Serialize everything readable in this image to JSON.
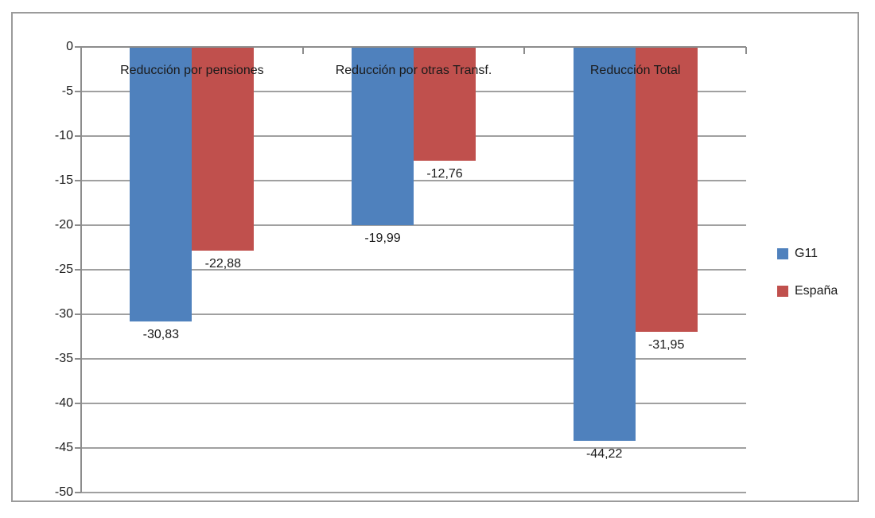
{
  "chart_data": {
    "type": "bar",
    "orientation": "vertical",
    "categories": [
      "Reducción por pensiones",
      "Reducción por otras Transf.",
      "Reducción Total"
    ],
    "series": [
      {
        "name": "G11",
        "color": "#4F81BD",
        "values": [
          -30.83,
          -19.99,
          -44.22
        ],
        "labels": [
          "-30,83",
          "-19,99",
          "-44,22"
        ]
      },
      {
        "name": "España",
        "color": "#C0504D",
        "values": [
          -22.88,
          -12.76,
          -31.95
        ],
        "labels": [
          "-22,88",
          "-12,76",
          "-31,95"
        ]
      }
    ],
    "y_axis": {
      "ticks": [
        0,
        -5,
        -10,
        -15,
        -20,
        -25,
        -30,
        -35,
        -40,
        -45,
        -50
      ],
      "tick_labels": [
        "0",
        "-5",
        "-10",
        "-15",
        "-20",
        "-25",
        "-30",
        "-35",
        "-40",
        "-45",
        "-50"
      ],
      "ylim": [
        0,
        -50
      ]
    },
    "grid": true,
    "legend_position": "right",
    "title": "",
    "xlabel": "",
    "ylabel": ""
  },
  "colors": {
    "gridline": "#a0a0a0",
    "axis": "#8c8c8c",
    "text": "#1a1a1a",
    "frame_border": "#9b9b9b",
    "background": "#ffffff"
  }
}
